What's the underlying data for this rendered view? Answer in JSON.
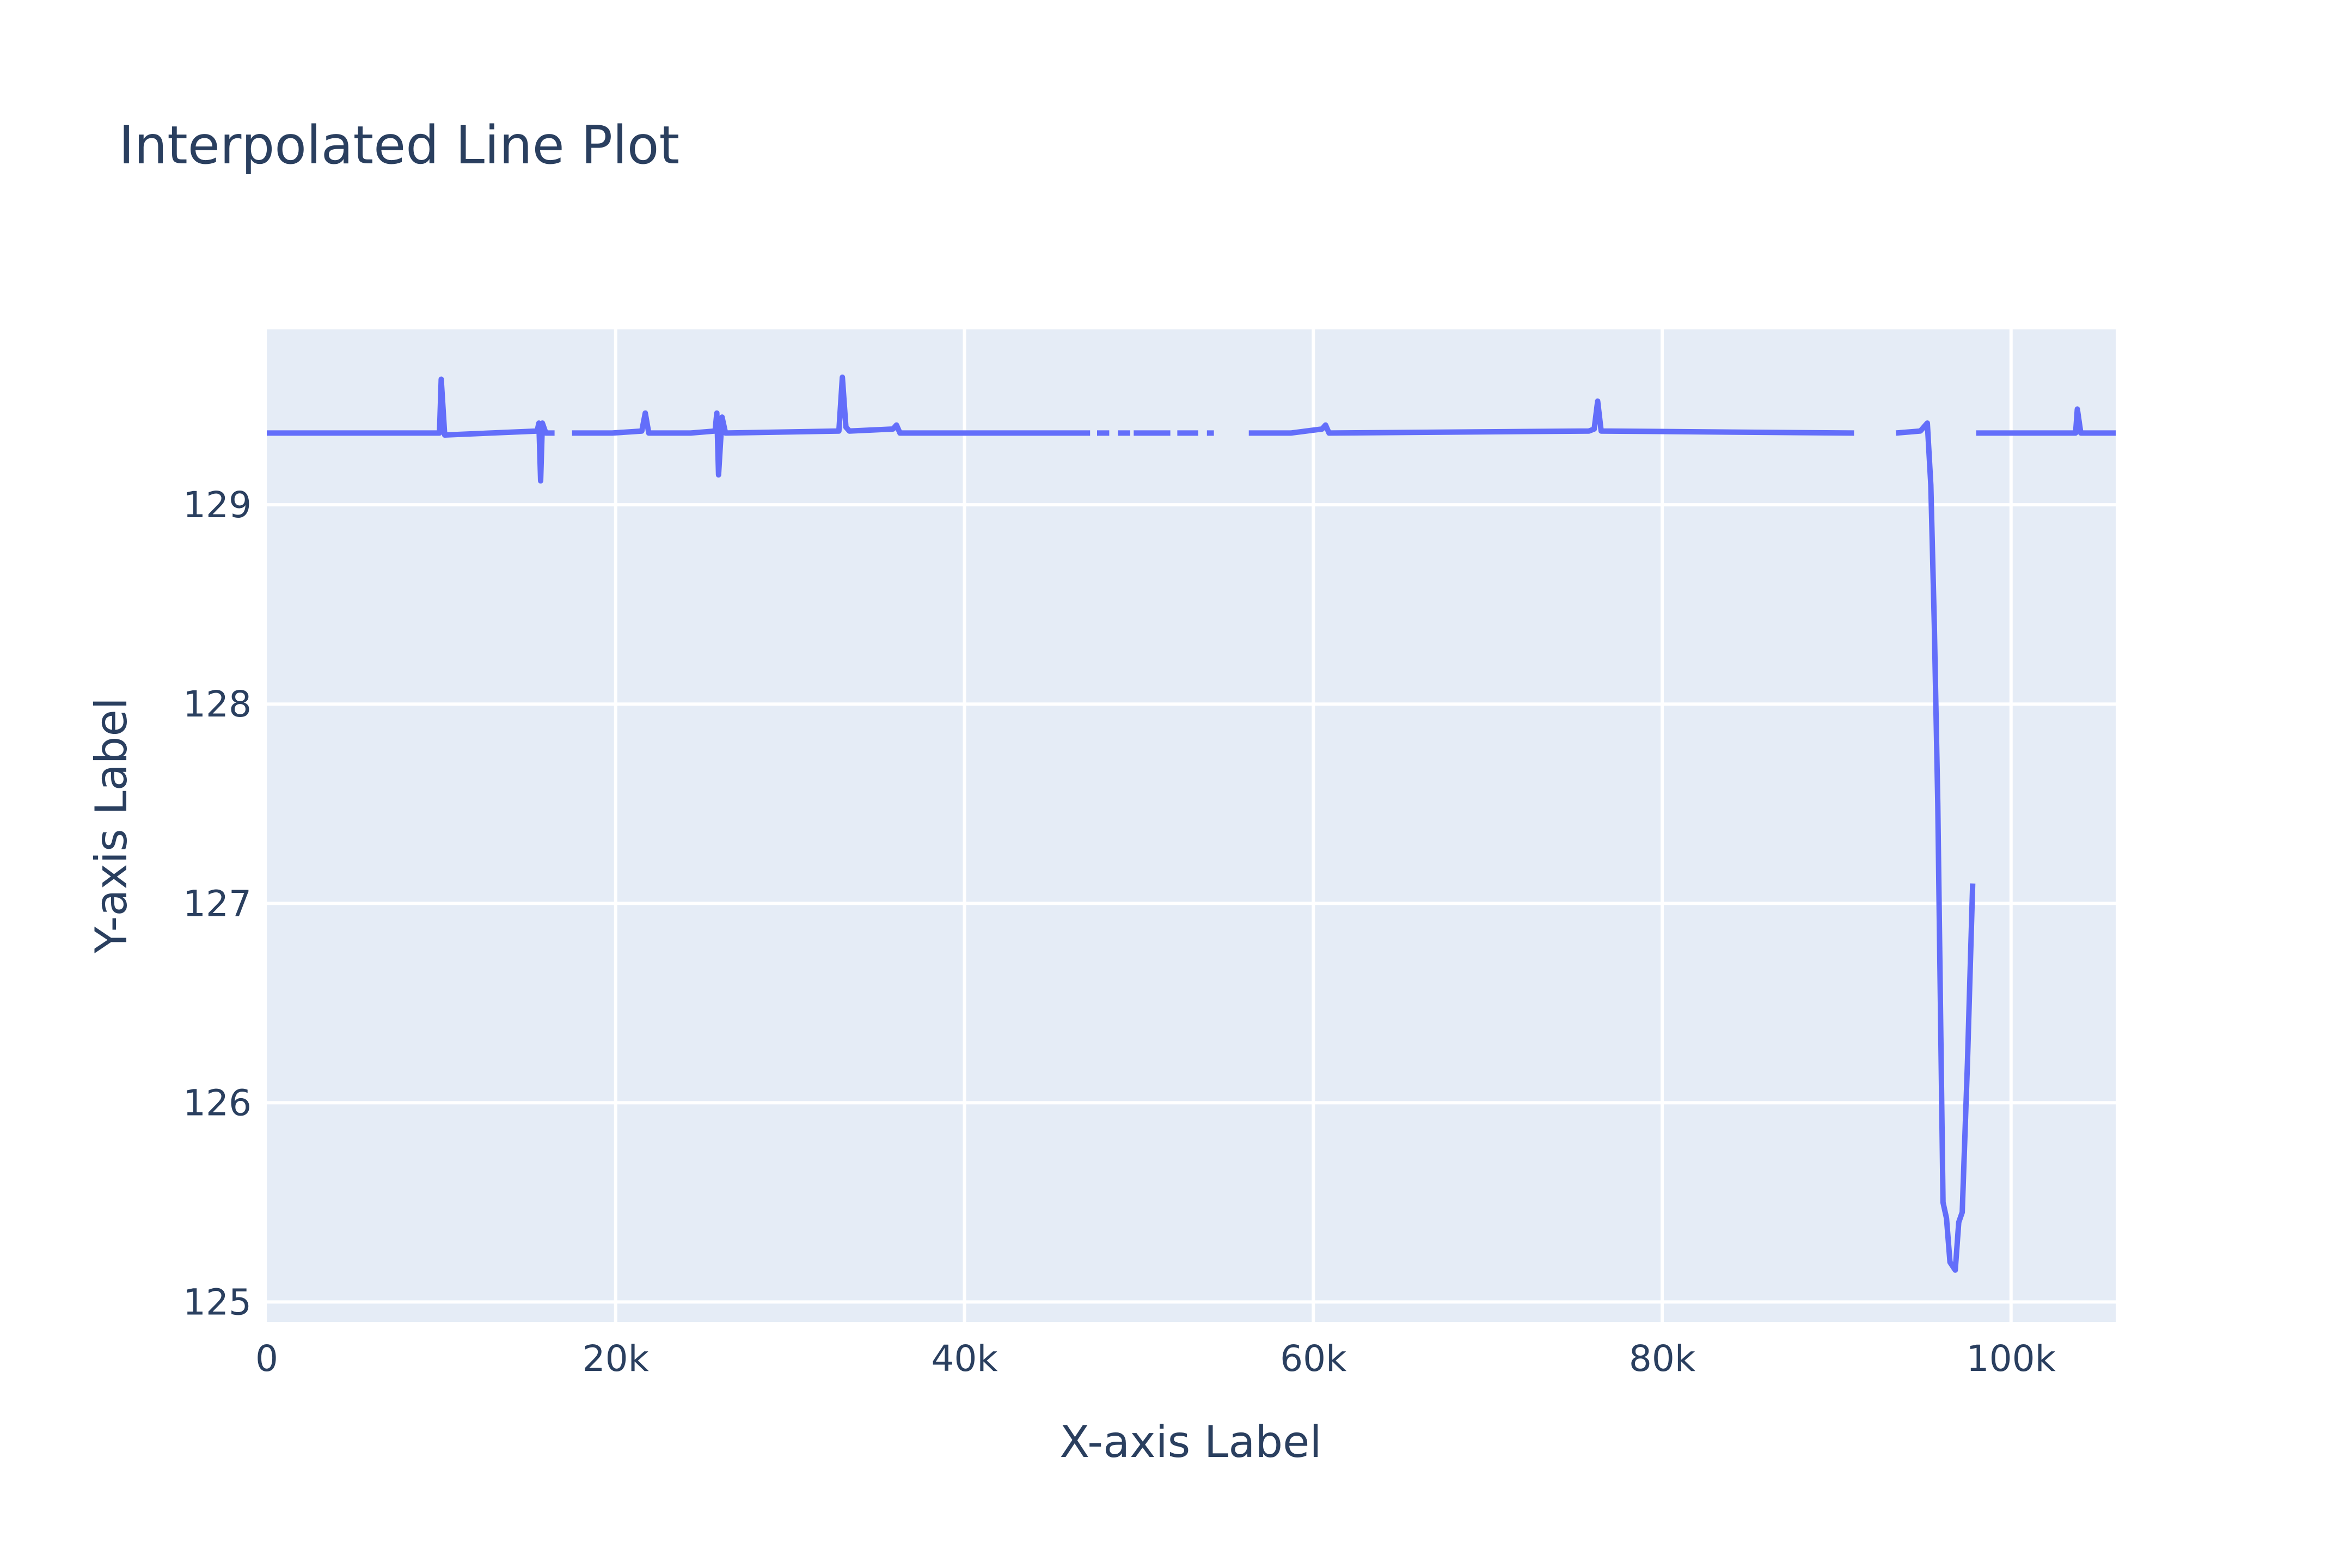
{
  "chart_data": {
    "type": "line",
    "title": "Interpolated Line Plot",
    "xlabel": "X-axis Label",
    "ylabel": "Y-axis Label",
    "xlim": [
      0,
      106000
    ],
    "ylim": [
      124.9,
      129.88
    ],
    "x_ticks": [
      {
        "value": 0,
        "label": "0"
      },
      {
        "value": 20000,
        "label": "20k"
      },
      {
        "value": 40000,
        "label": "40k"
      },
      {
        "value": 60000,
        "label": "60k"
      },
      {
        "value": 80000,
        "label": "80k"
      },
      {
        "value": 100000,
        "label": "100k"
      }
    ],
    "y_ticks": [
      {
        "value": 125,
        "label": "125"
      },
      {
        "value": 126,
        "label": "126"
      },
      {
        "value": 127,
        "label": "127"
      },
      {
        "value": 128,
        "label": "128"
      },
      {
        "value": 129,
        "label": "129"
      }
    ],
    "grid": true,
    "colors": {
      "line": "#636efa",
      "plot_bg": "#e5ecf6",
      "grid": "#ffffff",
      "text": "#2a3f5f"
    },
    "series": [
      {
        "segments": [
          [
            [
              0,
              129.36
            ],
            [
              9900,
              129.36
            ],
            [
              10000,
              129.63
            ],
            [
              10200,
              129.35
            ],
            [
              15500,
              129.37
            ],
            [
              15600,
              129.41
            ],
            [
              15700,
              129.12
            ],
            [
              15800,
              129.41
            ],
            [
              16000,
              129.36
            ],
            [
              16500,
              129.36
            ]
          ],
          [
            [
              17500,
              129.36
            ],
            [
              19800,
              129.36
            ],
            [
              21500,
              129.37
            ],
            [
              21700,
              129.46
            ],
            [
              21900,
              129.36
            ],
            [
              24300,
              129.36
            ],
            [
              25700,
              129.37
            ],
            [
              25800,
              129.46
            ],
            [
              25900,
              129.15
            ],
            [
              26100,
              129.44
            ],
            [
              26300,
              129.36
            ],
            [
              32800,
              129.37
            ],
            [
              33000,
              129.64
            ],
            [
              33200,
              129.39
            ],
            [
              33400,
              129.37
            ],
            [
              35900,
              129.38
            ],
            [
              36100,
              129.4
            ],
            [
              36300,
              129.36
            ],
            [
              47200,
              129.36
            ]
          ],
          [
            [
              47600,
              129.36
            ],
            [
              48300,
              129.36
            ]
          ],
          [
            [
              48800,
              129.36
            ],
            [
              49500,
              129.36
            ]
          ],
          [
            [
              49700,
              129.36
            ],
            [
              51800,
              129.36
            ]
          ],
          [
            [
              52200,
              129.36
            ],
            [
              53400,
              129.36
            ]
          ],
          [
            [
              53900,
              129.36
            ],
            [
              54300,
              129.36
            ]
          ],
          [
            [
              56300,
              129.36
            ],
            [
              58700,
              129.36
            ],
            [
              60500,
              129.38
            ],
            [
              60700,
              129.4
            ],
            [
              60900,
              129.36
            ],
            [
              75800,
              129.37
            ],
            [
              76100,
              129.38
            ],
            [
              76300,
              129.52
            ],
            [
              76500,
              129.37
            ],
            [
              91000,
              129.36
            ]
          ],
          [
            [
              93400,
              129.36
            ],
            [
              94800,
              129.37
            ],
            [
              95200,
              129.41
            ],
            [
              95400,
              129.1
            ],
            [
              95600,
              128.4
            ],
            [
              95800,
              127.5
            ],
            [
              96100,
              125.5
            ],
            [
              96300,
              125.42
            ],
            [
              96500,
              125.2
            ],
            [
              96800,
              125.16
            ],
            [
              97000,
              125.4
            ],
            [
              97200,
              125.45
            ],
            [
              97500,
              126.2
            ],
            [
              97600,
              126.5
            ],
            [
              97800,
              127.1
            ]
          ],
          [
            [
              98000,
              129.36
            ],
            [
              103700,
              129.36
            ],
            [
              103800,
              129.48
            ],
            [
              104000,
              129.36
            ],
            [
              106000,
              129.36
            ]
          ]
        ]
      }
    ]
  }
}
